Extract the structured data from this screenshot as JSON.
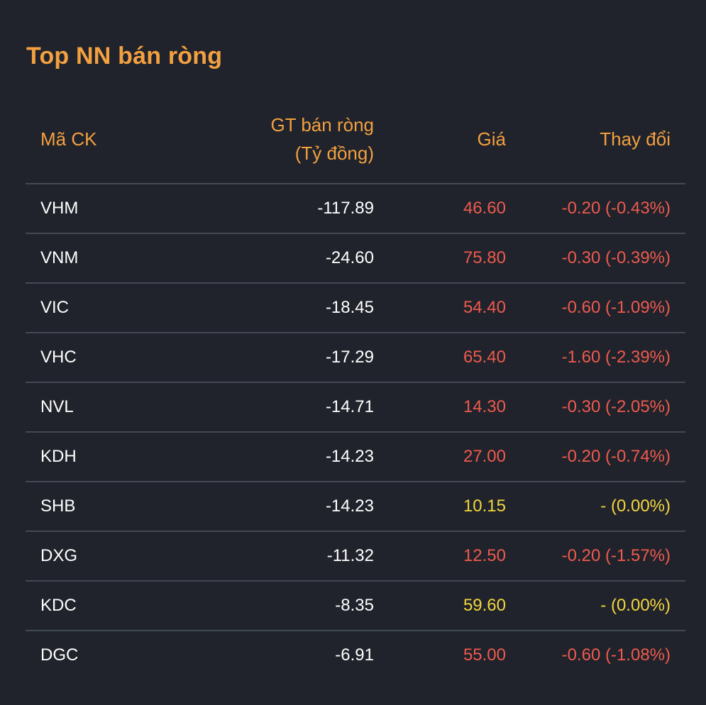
{
  "title": "Top NN bán ròng",
  "columns": {
    "code": "Mã CK",
    "value_line1": "GT bán ròng",
    "value_line2": "(Tỷ đồng)",
    "price": "Giá",
    "change": "Thay đổi"
  },
  "colors": {
    "accent": "#f2a040",
    "down": "#ee5a4e",
    "flat": "#f3d63d",
    "background": "#20232b",
    "divider": "#434856"
  },
  "rows": [
    {
      "code": "VHM",
      "value": "-117.89",
      "price": "46.60",
      "change": "-0.20 (-0.43%)",
      "trend": "down"
    },
    {
      "code": "VNM",
      "value": "-24.60",
      "price": "75.80",
      "change": "-0.30 (-0.39%)",
      "trend": "down"
    },
    {
      "code": "VIC",
      "value": "-18.45",
      "price": "54.40",
      "change": "-0.60 (-1.09%)",
      "trend": "down"
    },
    {
      "code": "VHC",
      "value": "-17.29",
      "price": "65.40",
      "change": "-1.60 (-2.39%)",
      "trend": "down"
    },
    {
      "code": "NVL",
      "value": "-14.71",
      "price": "14.30",
      "change": "-0.30 (-2.05%)",
      "trend": "down"
    },
    {
      "code": "KDH",
      "value": "-14.23",
      "price": "27.00",
      "change": "-0.20 (-0.74%)",
      "trend": "down"
    },
    {
      "code": "SHB",
      "value": "-14.23",
      "price": "10.15",
      "change": "- (0.00%)",
      "trend": "flat"
    },
    {
      "code": "DXG",
      "value": "-11.32",
      "price": "12.50",
      "change": "-0.20 (-1.57%)",
      "trend": "down"
    },
    {
      "code": "KDC",
      "value": "-8.35",
      "price": "59.60",
      "change": "- (0.00%)",
      "trend": "flat"
    },
    {
      "code": "DGC",
      "value": "-6.91",
      "price": "55.00",
      "change": "-0.60 (-1.08%)",
      "trend": "down"
    }
  ]
}
